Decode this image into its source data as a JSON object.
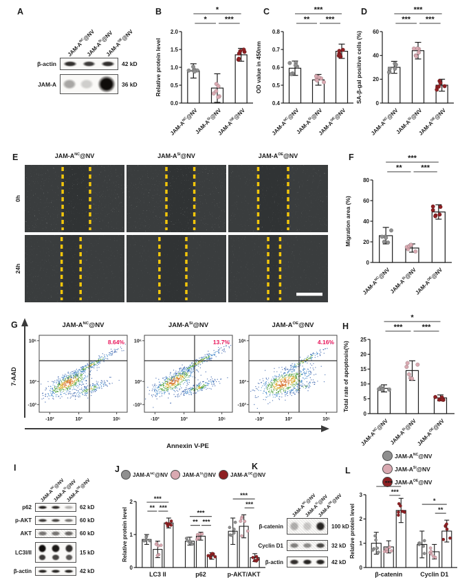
{
  "colors": {
    "background": "#ffffff",
    "bar_stroke": "#1b1b1b",
    "sig": "#3d3d3d",
    "flow_pct": "#e8155a",
    "yellow_dash": "#f2c50a",
    "group_dots": [
      "#8f8f8f",
      "#d9a9b1",
      "#8e2023"
    ]
  },
  "groups": [
    {
      "pre": "JAM-A",
      "sup": "NC",
      "post": "@NV",
      "color": "#8f8f8f"
    },
    {
      "pre": "JAM-A",
      "sup": "Si",
      "post": "@NV",
      "color": "#d9a9b1"
    },
    {
      "pre": "JAM-A",
      "sup": "OE",
      "post": "@NV",
      "color": "#8e2023"
    }
  ],
  "panels": {
    "A": {
      "letter": "A",
      "blot": {
        "rows": [
          {
            "label": "β-actin",
            "kd": "42 kD",
            "bands": [
              0.85,
              0.8,
              0.85
            ],
            "style": "band"
          },
          {
            "label": "JAM-A",
            "kd": "36 kD",
            "bands": [
              0.35,
              0.18,
              1.0
            ],
            "style": "blob"
          }
        ]
      }
    },
    "B": {
      "letter": "B"
    },
    "C": {
      "letter": "C"
    },
    "D": {
      "letter": "D"
    },
    "E": {
      "letter": "E",
      "row_labels": [
        "0h",
        "24h"
      ],
      "scale_bar": true,
      "wound_lines": [
        [
          [
            0.38,
            0.655
          ],
          [
            0.4,
            0.68
          ],
          [
            0.3,
            0.6
          ]
        ],
        [
          [
            0.37,
            0.56
          ],
          [
            0.33,
            0.6
          ],
          [
            0.4,
            0.52
          ]
        ]
      ]
    },
    "F": {
      "letter": "F"
    },
    "G": {
      "letter": "G",
      "xlabel": "Annexin V-PE",
      "ylabel": "7-AAD",
      "xticks": [
        "-10³",
        "10³",
        "10⁵"
      ],
      "yticks": [
        "10⁵",
        "10³",
        "-10³"
      ],
      "plots": [
        {
          "group": 0,
          "pct": "8.64%"
        },
        {
          "group": 1,
          "pct": "13.7%"
        },
        {
          "group": 2,
          "pct": "4.16%"
        }
      ]
    },
    "H": {
      "letter": "H"
    },
    "I": {
      "letter": "I",
      "blot": {
        "rows": [
          {
            "label": "p62",
            "kd": "62 kD",
            "bands": [
              0.9,
              0.85,
              0.3
            ],
            "style": "band"
          },
          {
            "label": "p-AKT",
            "kd": "60 kD",
            "bands": [
              0.8,
              0.75,
              0.55
            ],
            "style": "band"
          },
          {
            "label": "AKT",
            "kd": "60 kD",
            "bands": [
              0.55,
              0.55,
              0.6
            ],
            "style": "grain"
          },
          {
            "label": "LC3I/II",
            "kd": "15 kD",
            "bands": [
              1.0,
              0.95,
              0.85
            ],
            "style": "tall"
          },
          {
            "label": "β-actin",
            "kd": "42 kD",
            "bands": [
              0.9,
              0.9,
              0.9
            ],
            "style": "band"
          }
        ]
      }
    },
    "J": {
      "letter": "J"
    },
    "K": {
      "letter": "K",
      "blot": {
        "rows": [
          {
            "label": "β-catenin",
            "kd": "100 kD",
            "bands": [
              0.3,
              0.2,
              0.9
            ],
            "style": "grain"
          },
          {
            "label": "Cyclin D1",
            "kd": "32 kD",
            "bands": [
              0.5,
              0.45,
              0.75
            ],
            "style": "grain"
          },
          {
            "label": "β-actin",
            "kd": "42 kD",
            "bands": [
              0.85,
              0.9,
              0.9
            ],
            "style": "band"
          }
        ]
      }
    },
    "L": {
      "letter": "L"
    }
  },
  "chart_data": [
    {
      "panel": "B",
      "type": "bar",
      "title": "",
      "ylabel": "Relative protein level",
      "ylim": [
        0,
        2.0
      ],
      "yticks": [
        0.0,
        0.5,
        1.0,
        1.5,
        2.0
      ],
      "decimals": 1,
      "categories": [
        "JAM-A^NC@NV",
        "JAM-A^Si@NV",
        "JAM-A^OE@NV"
      ],
      "values": [
        0.9,
        0.42,
        1.35
      ],
      "errors": [
        0.2,
        0.4,
        0.18
      ],
      "sig": [
        {
          "a": 0,
          "b": 2,
          "label": "*"
        },
        {
          "a": 0,
          "b": 1,
          "label": "*"
        },
        {
          "a": 1,
          "b": 2,
          "label": "***"
        }
      ]
    },
    {
      "panel": "C",
      "type": "bar",
      "title": "",
      "ylabel": "OD value in 450nm",
      "ylim": [
        0.4,
        0.8
      ],
      "yticks": [
        0.4,
        0.5,
        0.6,
        0.7,
        0.8
      ],
      "decimals": 1,
      "categories": [
        "JAM-A^NC@NV",
        "JAM-A^Si@NV",
        "JAM-A^OE@NV"
      ],
      "values": [
        0.595,
        0.53,
        0.69
      ],
      "errors": [
        0.04,
        0.03,
        0.04
      ],
      "sig": [
        {
          "a": 0,
          "b": 2,
          "label": "***"
        },
        {
          "a": 0,
          "b": 1,
          "label": "**"
        },
        {
          "a": 1,
          "b": 2,
          "label": "***"
        }
      ]
    },
    {
      "panel": "D",
      "type": "bar",
      "title": "",
      "ylabel": "SA-β-gal positive cells (%)",
      "ylim": [
        0,
        60
      ],
      "yticks": [
        0,
        20,
        40,
        60
      ],
      "decimals": 0,
      "categories": [
        "JAM-A^NC@NV",
        "JAM-A^Si@NV",
        "JAM-A^OE@NV"
      ],
      "values": [
        30,
        44,
        15
      ],
      "errors": [
        5,
        7,
        5
      ],
      "sig": [
        {
          "a": 0,
          "b": 2,
          "label": "***"
        },
        {
          "a": 0,
          "b": 1,
          "label": "***"
        },
        {
          "a": 1,
          "b": 2,
          "label": "***"
        }
      ]
    },
    {
      "panel": "F",
      "type": "bar",
      "title": "",
      "ylabel": "Migration area (%)",
      "ylim": [
        0,
        80
      ],
      "yticks": [
        0,
        20,
        40,
        60,
        80
      ],
      "decimals": 0,
      "categories": [
        "JAM-A^NC@NV",
        "JAM-A^Si@NV",
        "JAM-A^OE@NV"
      ],
      "values": [
        26,
        14,
        49
      ],
      "errors": [
        8,
        4,
        7
      ],
      "sig": [
        {
          "a": 0,
          "b": 2,
          "label": "***"
        },
        {
          "a": 0,
          "b": 1,
          "label": "**"
        },
        {
          "a": 1,
          "b": 2,
          "label": "***"
        }
      ]
    },
    {
      "panel": "H",
      "type": "bar",
      "title": "",
      "ylabel": "Total rate of apoptosis(%)",
      "ylim": [
        0,
        25
      ],
      "yticks": [
        0,
        5,
        10,
        15,
        20,
        25
      ],
      "decimals": 0,
      "categories": [
        "JAM-A^NC@NV",
        "JAM-A^Si@NV",
        "JAM-A^OE@NV"
      ],
      "values": [
        8.5,
        14.5,
        5.3
      ],
      "errors": [
        1.2,
        3.3,
        1.0
      ],
      "sig": [
        {
          "a": 0,
          "b": 2,
          "label": "*"
        },
        {
          "a": 0,
          "b": 1,
          "label": "***"
        },
        {
          "a": 1,
          "b": 2,
          "label": "***"
        }
      ]
    },
    {
      "panel": "J",
      "type": "grouped_bar",
      "title": "",
      "ylabel": "Relative protein level",
      "ylim": [
        0,
        2
      ],
      "yticks": [
        0,
        1,
        2
      ],
      "decimals": 0,
      "categories": [
        "LC3 II",
        "p62",
        "p-AKT/AKT"
      ],
      "series": [
        {
          "name": "JAM-A^NC@NV",
          "color": "#8f8f8f",
          "values": [
            0.85,
            0.8,
            1.1
          ],
          "errors": [
            0.15,
            0.12,
            0.4
          ]
        },
        {
          "name": "JAM-A^Si@NV",
          "color": "#d9a9b1",
          "values": [
            0.55,
            0.95,
            1.25
          ],
          "errors": [
            0.25,
            0.12,
            0.35
          ]
        },
        {
          "name": "JAM-A^OE@NV",
          "color": "#8e2023",
          "values": [
            1.35,
            0.35,
            0.3
          ],
          "errors": [
            0.15,
            0.1,
            0.12
          ]
        }
      ],
      "sig": [
        {
          "cat": 0,
          "a": 0,
          "b": 2,
          "label": "***"
        },
        {
          "cat": 0,
          "a": 0,
          "b": 1,
          "label": "**"
        },
        {
          "cat": 0,
          "a": 1,
          "b": 2,
          "label": "***"
        },
        {
          "cat": 1,
          "a": 0,
          "b": 2,
          "label": "***"
        },
        {
          "cat": 1,
          "a": 0,
          "b": 1,
          "label": "**"
        },
        {
          "cat": 1,
          "a": 1,
          "b": 2,
          "label": "***"
        },
        {
          "cat": 2,
          "a": 0,
          "b": 2,
          "label": "***"
        },
        {
          "cat": 2,
          "a": 1,
          "b": 2,
          "label": "***"
        }
      ]
    },
    {
      "panel": "L",
      "type": "grouped_bar",
      "title": "",
      "ylabel": "Relative protein level",
      "ylim": [
        0,
        3
      ],
      "yticks": [
        0,
        1,
        2,
        3
      ],
      "decimals": 0,
      "categories": [
        "β-catenin",
        "Cyclin D1"
      ],
      "series": [
        {
          "name": "JAM-A^NC@NV",
          "color": "#8f8f8f",
          "values": [
            1.0,
            0.95
          ],
          "errors": [
            0.45,
            0.55
          ]
        },
        {
          "name": "JAM-A^Si@NV",
          "color": "#d9a9b1",
          "values": [
            0.85,
            0.65
          ],
          "errors": [
            0.25,
            0.3
          ]
        },
        {
          "name": "JAM-A^OE@NV",
          "color": "#8e2023",
          "values": [
            2.35,
            1.5
          ],
          "errors": [
            0.5,
            0.45
          ]
        }
      ],
      "sig": [
        {
          "cat": 0,
          "a": 0,
          "b": 2,
          "label": "***"
        },
        {
          "cat": 0,
          "a": 1,
          "b": 2,
          "label": "***"
        },
        {
          "cat": 1,
          "a": 0,
          "b": 2,
          "label": "*"
        },
        {
          "cat": 1,
          "a": 1,
          "b": 2,
          "label": "**"
        }
      ]
    }
  ]
}
